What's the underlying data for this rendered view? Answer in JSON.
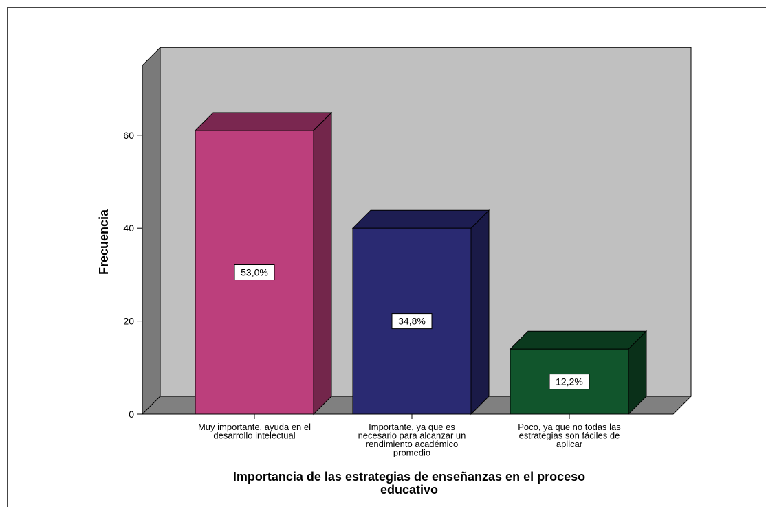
{
  "chart_data": {
    "type": "bar",
    "xlabel": "Importancia de las estrategias de enseñanzas en el proceso educativo",
    "ylabel": "Frecuencia",
    "ylim": [
      0,
      75
    ],
    "yticks": [
      0,
      20,
      40,
      60
    ],
    "categories": [
      "Muy importante, ayuda en el desarrollo intelectual",
      "Importante, ya que es necesario para alcanzar un rendimiento académico promedio",
      "Poco, ya que no todas las estrategias son fáciles de aplicar"
    ],
    "category_lines": [
      [
        "Muy importante, ayuda en el",
        "desarrollo intelectual"
      ],
      [
        "Importante, ya que es",
        "necesario para alcanzar un",
        "rendimiento académico",
        "promedio"
      ],
      [
        "Poco, ya que no todas las",
        "estrategias son fáciles de",
        "aplicar"
      ]
    ],
    "xlabel_lines": [
      "Importancia de las estrategias de enseñanzas en el proceso",
      "educativo"
    ],
    "values": [
      61,
      40,
      14
    ],
    "data_labels": [
      "53,0%",
      "34,8%",
      "12,2%"
    ],
    "colors": {
      "bars_front": [
        "#bc3f7c",
        "#2a2a72",
        "#11552c"
      ],
      "bars_top": [
        "#7a2750",
        "#1d1d52",
        "#0b3a1e"
      ],
      "bars_side": [
        "#73264b",
        "#1a1a47",
        "#0a3019"
      ],
      "wall": "#c0c0c0",
      "floor": "#808080",
      "left_wall": "#7a7a7a"
    },
    "grid": false,
    "style": "3d"
  }
}
